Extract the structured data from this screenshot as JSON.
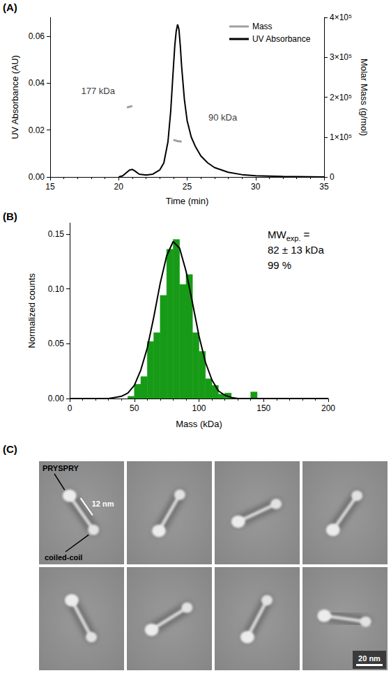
{
  "chart_data": [
    {
      "panel_label": "(A)",
      "type": "line",
      "x_label": "Time (min)",
      "y_label": "UV Absorbance (AU)",
      "y2_label": "Molar Mass (g/mol)",
      "xlim": [
        15,
        35
      ],
      "xticks": [
        15,
        20,
        25,
        30,
        35
      ],
      "ylim": [
        0,
        0.068
      ],
      "yticks": [
        {
          "value": 0,
          "label": "0.00"
        },
        {
          "value": 0.02,
          "label": "0.02"
        },
        {
          "value": 0.04,
          "label": "0.04"
        },
        {
          "value": 0.06,
          "label": "0.06"
        }
      ],
      "y2lim": [
        0,
        400000
      ],
      "y2ticks": [
        0,
        {
          "value": 100000,
          "label": "1×10⁵"
        },
        {
          "value": 200000,
          "label": "2×10⁵"
        },
        {
          "value": 300000,
          "label": "3×10⁵"
        },
        {
          "value": 400000,
          "label": "4×10⁵"
        }
      ],
      "grid": false,
      "legend": "top-right",
      "series": [
        {
          "name": "Mass",
          "color": "#a0a0a0",
          "axis": "y2",
          "x": [
            20.6,
            20.7,
            20.8,
            20.9,
            21.0,
            22.5,
            24.0,
            24.1,
            24.2,
            24.3,
            24.4,
            24.5,
            24.6
          ],
          "values": [
            174000,
            175000,
            176000,
            177000,
            178000,
            null,
            93000,
            92000,
            91000,
            90000,
            89500,
            89000,
            88500
          ]
        },
        {
          "name": "UV Absorbance",
          "color": "#000000",
          "x": [
            20.0,
            20.3,
            20.6,
            20.8,
            21.0,
            21.2,
            21.5,
            22.0,
            22.5,
            23.0,
            23.3,
            23.6,
            23.8,
            24.0,
            24.1,
            24.2,
            24.3,
            24.4,
            24.5,
            24.6,
            24.8,
            25.0,
            25.3,
            25.6,
            26.0,
            26.5,
            27,
            28,
            29,
            30,
            32,
            35
          ],
          "values": [
            0,
            0.0005,
            0.002,
            0.003,
            0.0032,
            0.0025,
            0.0012,
            0.0008,
            0.0012,
            0.003,
            0.006,
            0.015,
            0.028,
            0.047,
            0.056,
            0.062,
            0.065,
            0.063,
            0.056,
            0.047,
            0.033,
            0.024,
            0.017,
            0.013,
            0.009,
            0.006,
            0.004,
            0.002,
            0.001,
            0.0005,
            0.0002,
            0
          ]
        }
      ],
      "annotations": [
        {
          "text": "177 kDa",
          "x": 18.5,
          "y": 215000,
          "axis": "y2"
        },
        {
          "text": "90 kDa",
          "x": 27.6,
          "y": 150000,
          "axis": "y2"
        }
      ]
    },
    {
      "panel_label": "(B)",
      "type": "histogram",
      "x_label": "Mass (kDa)",
      "y_label": "Normalized counts",
      "xlim": [
        0,
        200
      ],
      "xticks": [
        0,
        50,
        100,
        150,
        200
      ],
      "ylim": [
        0,
        0.16
      ],
      "yticks": [
        {
          "value": 0,
          "label": "0.00"
        },
        {
          "value": 0.05,
          "label": "0.05"
        },
        {
          "value": 0.1,
          "label": "0.10"
        },
        {
          "value": 0.15,
          "label": "0.15"
        }
      ],
      "grid": false,
      "color": "#179b17",
      "bins": [
        45,
        50,
        55,
        60,
        65,
        70,
        75,
        80,
        85,
        90,
        95,
        100,
        105,
        110,
        115,
        120,
        125,
        130,
        135,
        140,
        145
      ],
      "values": [
        0.002,
        0.013,
        0.02,
        0.052,
        0.06,
        0.094,
        0.136,
        0.145,
        0.104,
        0.113,
        0.06,
        0.043,
        0.018,
        0.012,
        0.004,
        0.005,
        0,
        0,
        0,
        0.006
      ],
      "fit": {
        "type": "line",
        "color": "#000000",
        "x": [
          0,
          30,
          35,
          40,
          45,
          50,
          55,
          60,
          65,
          70,
          75,
          80,
          85,
          90,
          95,
          100,
          105,
          110,
          115,
          120,
          125,
          130,
          200
        ],
        "values": [
          0,
          0,
          0.001,
          0.002,
          0.005,
          0.012,
          0.026,
          0.046,
          0.074,
          0.105,
          0.13,
          0.143,
          0.137,
          0.116,
          0.087,
          0.057,
          0.033,
          0.017,
          0.007,
          0.003,
          0.001,
          0,
          0
        ]
      },
      "annotation": [
        [
          {
            "text": "MW"
          },
          {
            "text": "exp.",
            "sub": true
          },
          {
            "text": " ="
          }
        ],
        [
          {
            "text": "82 ± 13 kDa"
          }
        ],
        [
          {
            "text": "99 %"
          }
        ]
      ]
    }
  ],
  "micrographs": {
    "panel_label": "(C)",
    "count": 8,
    "labels": {
      "domain_top": "PRYSPRY",
      "length": "12 nm",
      "domain_bottom": "coiled-coil"
    },
    "scale_bar": "20 nm"
  }
}
